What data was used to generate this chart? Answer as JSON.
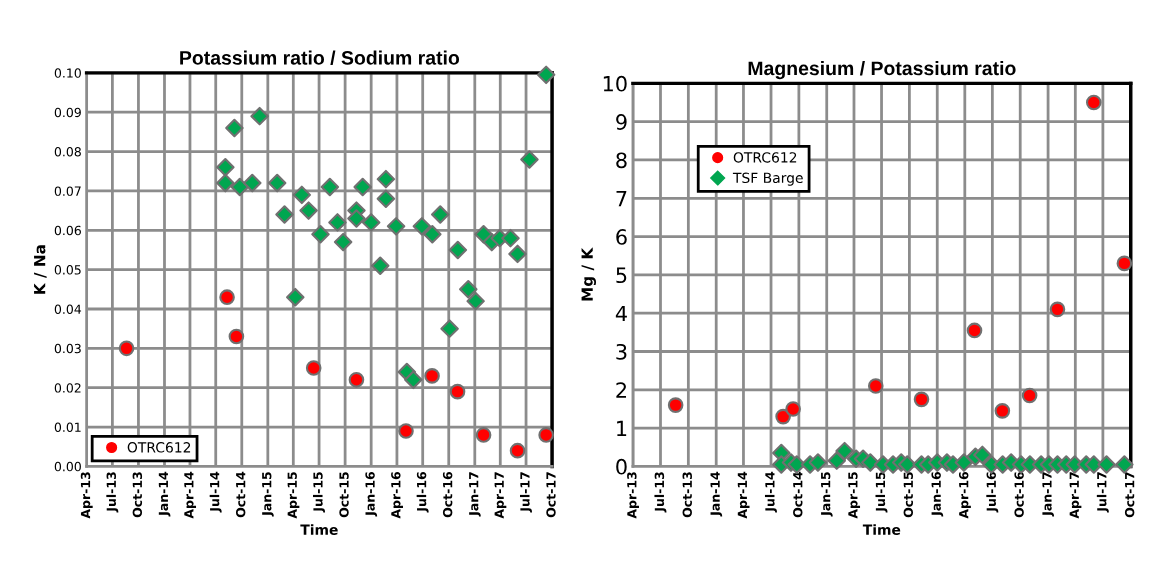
{
  "chart_data": [
    {
      "type": "scatter",
      "title": "Potassium ratio / Sodium ratio",
      "xlabel": "Time",
      "ylabel": "K / Na",
      "xlim": [
        "2013-04",
        "2017-10"
      ],
      "xticks": [
        {
          "value": "2013-04",
          "label": "Apr-13"
        },
        {
          "value": "2013-07",
          "label": "Jul-13"
        },
        {
          "value": "2013-10",
          "label": "Oct-13"
        },
        {
          "value": "2014-01",
          "label": "Jan-14"
        },
        {
          "value": "2014-04",
          "label": "Apr-14"
        },
        {
          "value": "2014-07",
          "label": "Jul-14"
        },
        {
          "value": "2014-10",
          "label": "Oct-14"
        },
        {
          "value": "2015-01",
          "label": "Jan-15"
        },
        {
          "value": "2015-04",
          "label": "Apr-15"
        },
        {
          "value": "2015-07",
          "label": "Jul-15"
        },
        {
          "value": "2015-10",
          "label": "Oct-15"
        },
        {
          "value": "2016-01",
          "label": "Jan-16"
        },
        {
          "value": "2016-04",
          "label": "Apr-16"
        },
        {
          "value": "2016-07",
          "label": "Jul-16"
        },
        {
          "value": "2016-10",
          "label": "Oct-16"
        },
        {
          "value": "2017-01",
          "label": "Jan-17"
        },
        {
          "value": "2017-04",
          "label": "Apr-17"
        },
        {
          "value": "2017-07",
          "label": "Jul-17"
        },
        {
          "value": "2017-10",
          "label": "Oct-17"
        }
      ],
      "ylim": [
        0,
        0.1
      ],
      "yticks": [
        {
          "value": 0,
          "label": "0.00"
        },
        {
          "value": 0.01,
          "label": "0.01"
        },
        {
          "value": 0.02,
          "label": "0.02"
        },
        {
          "value": 0.03,
          "label": "0.03"
        },
        {
          "value": 0.04,
          "label": "0.04"
        },
        {
          "value": 0.05,
          "label": "0.05"
        },
        {
          "value": 0.06,
          "label": "0.06"
        },
        {
          "value": 0.07,
          "label": "0.07"
        },
        {
          "value": 0.08,
          "label": "0.08"
        },
        {
          "value": 0.09,
          "label": "0.09"
        },
        {
          "value": 0.1,
          "label": "0.10"
        }
      ],
      "grid": true,
      "legend": "bottom left",
      "series": [
        {
          "name": "OTRC612",
          "color": "#ff0000",
          "marker": "circle",
          "x": [
            "2013-08-20",
            "2014-08-10",
            "2014-09-12",
            "2015-06-12",
            "2015-11-10",
            "2016-05-03",
            "2016-08-03",
            "2016-11-01",
            "2017-02-01",
            "2017-06-01",
            "2017-09-10"
          ],
          "values": [
            0.03,
            0.043,
            0.033,
            0.025,
            0.022,
            0.009,
            0.023,
            0.019,
            0.008,
            0.004,
            0.008
          ]
        },
        {
          "color": "#00a650",
          "marker": "diamond",
          "x": [
            "2014-08-04",
            "2014-08-04",
            "2014-09-05",
            "2014-09-24",
            "2014-11-07",
            "2014-12-03",
            "2015-02-03",
            "2015-03-01",
            "2015-04-08",
            "2015-05-01",
            "2015-05-25",
            "2015-07-06",
            "2015-08-08",
            "2015-09-04",
            "2015-09-24",
            "2015-11-10",
            "2015-11-10",
            "2015-12-02",
            "2016-01-01",
            "2016-02-02",
            "2016-02-22",
            "2016-02-22",
            "2016-03-29",
            "2016-05-06",
            "2016-05-29",
            "2016-06-28",
            "2016-08-04",
            "2016-09-01",
            "2016-10-04",
            "2016-11-02",
            "2016-12-09",
            "2017-01-04",
            "2017-02-01",
            "2017-03-02",
            "2017-03-30",
            "2017-05-07",
            "2017-06-01",
            "2017-07-13",
            "2017-09-10"
          ],
          "values": [
            0.076,
            0.072,
            0.086,
            0.071,
            0.072,
            0.089,
            0.072,
            0.064,
            0.043,
            0.069,
            0.065,
            0.059,
            0.071,
            0.062,
            0.057,
            0.065,
            0.063,
            0.071,
            0.062,
            0.051,
            0.073,
            0.068,
            0.061,
            0.024,
            0.022,
            0.061,
            0.059,
            0.064,
            0.035,
            0.055,
            0.045,
            0.042,
            0.059,
            0.057,
            0.058,
            0.058,
            0.054,
            0.078,
            0.0995
          ]
        }
      ]
    },
    {
      "type": "scatter",
      "title": "Magnesium / Potassium ratio",
      "xlabel": "Time",
      "ylabel": "Mg / K",
      "xlim": [
        "2013-04",
        "2017-10"
      ],
      "xticks": [
        {
          "value": "2013-04",
          "label": "Apr-13"
        },
        {
          "value": "2013-07",
          "label": "Jul-13"
        },
        {
          "value": "2013-10",
          "label": "Oct-13"
        },
        {
          "value": "2014-01",
          "label": "Jan-14"
        },
        {
          "value": "2014-04",
          "label": "Apr-14"
        },
        {
          "value": "2014-07",
          "label": "Jul-14"
        },
        {
          "value": "2014-10",
          "label": "Oct-14"
        },
        {
          "value": "2015-01",
          "label": "Jan-15"
        },
        {
          "value": "2015-04",
          "label": "Apr-15"
        },
        {
          "value": "2015-07",
          "label": "Jul-15"
        },
        {
          "value": "2015-10",
          "label": "Oct-15"
        },
        {
          "value": "2016-01",
          "label": "Jan-16"
        },
        {
          "value": "2016-04",
          "label": "Apr-16"
        },
        {
          "value": "2016-07",
          "label": "Jul-16"
        },
        {
          "value": "2016-10",
          "label": "Oct-16"
        },
        {
          "value": "2017-01",
          "label": "Jan-17"
        },
        {
          "value": "2017-04",
          "label": "Apr-17"
        },
        {
          "value": "2017-07",
          "label": "Jul-17"
        },
        {
          "value": "2017-10",
          "label": "Oct-17"
        }
      ],
      "ylim": [
        0,
        10
      ],
      "yticks": [
        0,
        1,
        2,
        3,
        4,
        5,
        6,
        7,
        8,
        9,
        10
      ],
      "grid": true,
      "legend": "top left",
      "series": [
        {
          "name": "OTRC612",
          "color": "#ff0000",
          "marker": "circle",
          "x": [
            "2013-08-20",
            "2014-08-10",
            "2014-09-12",
            "2015-06-12",
            "2015-11-10",
            "2016-05-03",
            "2016-08-03",
            "2016-11-01",
            "2017-02-01",
            "2017-06-01",
            "2017-09-10"
          ],
          "values": [
            1.6,
            1.3,
            1.5,
            2.1,
            1.75,
            3.55,
            1.45,
            1.85,
            4.1,
            9.5,
            5.3
          ]
        },
        {
          "name": "TSF Barge",
          "color": "#00a650",
          "marker": "diamond",
          "x": [
            "2014-08-04",
            "2014-08-04",
            "2014-09-05",
            "2014-09-24",
            "2014-11-07",
            "2014-12-03",
            "2015-02-03",
            "2015-03-01",
            "2015-04-08",
            "2015-05-01",
            "2015-05-25",
            "2015-07-06",
            "2015-08-08",
            "2015-09-04",
            "2015-09-24",
            "2015-11-10",
            "2015-12-02",
            "2016-01-01",
            "2016-02-02",
            "2016-02-22",
            "2016-03-29",
            "2016-05-06",
            "2016-05-29",
            "2016-06-28",
            "2016-08-04",
            "2016-09-01",
            "2016-10-04",
            "2016-11-02",
            "2016-12-09",
            "2017-01-04",
            "2017-02-01",
            "2017-03-02",
            "2017-03-30",
            "2017-05-07",
            "2017-06-01",
            "2017-07-13",
            "2017-09-10"
          ],
          "values": [
            0.35,
            0.05,
            0.1,
            0.05,
            0.05,
            0.1,
            0.15,
            0.4,
            0.2,
            0.2,
            0.1,
            0.05,
            0.05,
            0.1,
            0.05,
            0.05,
            0.05,
            0.1,
            0.1,
            0.05,
            0.1,
            0.25,
            0.3,
            0.05,
            0.05,
            0.1,
            0.05,
            0.05,
            0.05,
            0.05,
            0.05,
            0.05,
            0.05,
            0.05,
            0.05,
            0.05,
            0.05
          ]
        }
      ]
    }
  ]
}
